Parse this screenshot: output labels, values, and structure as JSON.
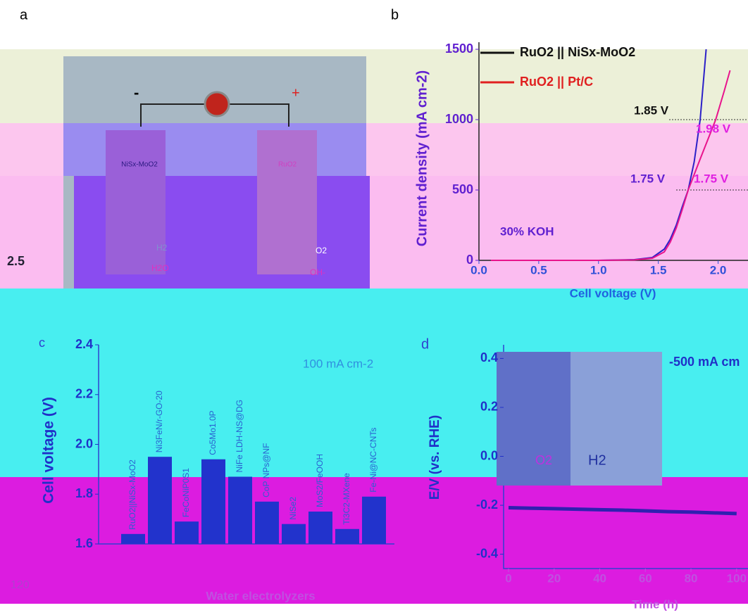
{
  "panel_labels": [
    "a",
    "b",
    "c",
    "d"
  ],
  "diagram": {
    "minus": "-",
    "plus": "+",
    "cathode": "NiSx-MoO2",
    "anode": "RuO2",
    "h2": "H2",
    "h2o": "H2O",
    "o2": "O2",
    "oh": "OH-"
  },
  "fragments": [
    "2.5",
    "120"
  ],
  "chart_data": [
    {
      "type": "line",
      "x_label": "Cell voltage (V)",
      "y_label": "Current density (mA cm-2)",
      "xlim": [
        0,
        2.25
      ],
      "ylim": [
        0,
        1500
      ],
      "xticks": [
        {
          "value": 0,
          "label": "0.0"
        },
        0.5,
        {
          "value": 1,
          "label": "1.0"
        },
        1.5,
        {
          "value": 2,
          "label": "2.0"
        }
      ],
      "yticks": [
        0,
        500,
        1000,
        1500
      ],
      "annotations": [
        "1.85 V",
        "1.98 V",
        "1.75 V",
        "1.75 V",
        "30% KOH"
      ],
      "series": [
        {
          "name": "RuO2 || NiSx-MoO2",
          "color": "#2c20c8",
          "x": [
            0.1,
            0.5,
            1.0,
            1.3,
            1.45,
            1.55,
            1.6,
            1.65,
            1.7,
            1.75,
            1.8,
            1.85,
            1.9
          ],
          "values": [
            0,
            0,
            0,
            5,
            20,
            80,
            150,
            250,
            380,
            500,
            700,
            1000,
            1500
          ]
        },
        {
          "name": "RuO2 || Pt/C",
          "color": "#e8148c",
          "x": [
            0.1,
            0.5,
            1.0,
            1.3,
            1.45,
            1.55,
            1.6,
            1.65,
            1.7,
            1.75,
            1.85,
            1.98,
            2.05,
            2.1
          ],
          "values": [
            0,
            0,
            0,
            3,
            15,
            60,
            130,
            230,
            360,
            500,
            720,
            1000,
            1200,
            1350
          ]
        }
      ]
    },
    {
      "type": "bar",
      "title": "100 mA cm-2",
      "x_label": "Water electrolyzers",
      "y_label": "Cell voltage (V)",
      "ylim": [
        1.6,
        2.4
      ],
      "yticks": [
        1.6,
        1.8,
        {
          "value": 2,
          "label": "2.0"
        },
        2.2,
        2.4
      ],
      "color": "#2233cc",
      "categories": [
        "RuO2||NiSx-MoO2",
        "Ni3FeN/r-GO-20",
        "FeCoNiP0S1",
        "Co5Mo1.0P",
        "NiFe LDH-NS@DG",
        "CoP NPs@NF",
        "NiSe2",
        "MoS2/FeOOH",
        "Ti3C2-MXene",
        "Fe-Ni@NC-CNTs"
      ],
      "values": [
        1.64,
        1.95,
        1.69,
        1.94,
        1.87,
        1.77,
        1.68,
        1.73,
        1.66,
        1.79
      ]
    },
    {
      "type": "line",
      "title": "-500 mA cm",
      "x_label": "Time (h)",
      "y_label": "E/V (vs. RHE)",
      "xlim": [
        0,
        105
      ],
      "ylim": [
        -0.45,
        0.45
      ],
      "xticks": [
        0,
        20,
        40,
        60,
        80,
        100
      ],
      "yticks": [
        -0.4,
        -0.2,
        {
          "value": 0,
          "label": "0.0"
        },
        0.2,
        0.4
      ],
      "inset_labels": [
        "O2",
        "H2"
      ],
      "series": [
        {
          "name": null,
          "color": "#3020b0",
          "x": [
            0,
            10,
            20,
            30,
            40,
            50,
            60,
            70,
            80,
            90,
            100
          ],
          "values": [
            -0.21,
            -0.212,
            -0.214,
            -0.216,
            -0.218,
            -0.22,
            -0.223,
            -0.226,
            -0.228,
            -0.231,
            -0.234
          ]
        }
      ]
    }
  ]
}
